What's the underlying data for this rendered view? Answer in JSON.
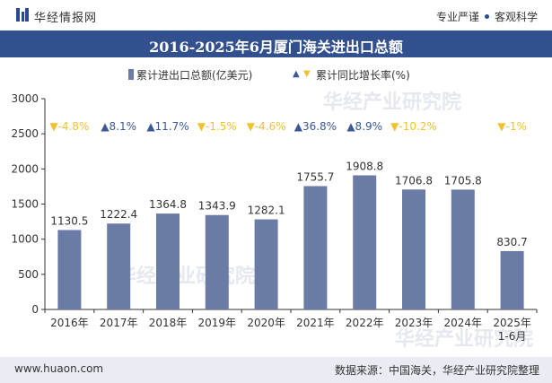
{
  "header": {
    "site_name": "华经情报网",
    "tagline_left": "专业严谨",
    "tagline_right": "客观科学"
  },
  "colors": {
    "bar": "#6a7ba6",
    "title_bg": "#324f8e",
    "up": "#3b5998",
    "down": "#f2c12e"
  },
  "legend": {
    "series1": "累计进出口总额(亿美元)",
    "series2": "累计同比增长率(%)"
  },
  "footer": {
    "url": "www.huaon.com",
    "source": "数据来源：中国海关，华经产业研究院整理"
  },
  "watermark": "华经产业研究院",
  "chart_data": {
    "type": "bar",
    "title": "2016-2025年6月厦门海关进出口总额",
    "categories": [
      "2016年",
      "2017年",
      "2018年",
      "2019年",
      "2020年",
      "2021年",
      "2022年",
      "2023年",
      "2024年",
      "2025年 1-6月"
    ],
    "ylim": [
      0,
      3000
    ],
    "yticks": [
      0,
      500,
      1000,
      1500,
      2000,
      2500,
      3000
    ],
    "series": [
      {
        "name": "累计进出口总额(亿美元)",
        "values": [
          1130.5,
          1222.4,
          1364.8,
          1343.9,
          1282.1,
          1755.7,
          1908.8,
          1706.8,
          1705.8,
          830.7
        ],
        "labels": [
          "1130.5",
          "1222.4",
          "1364.8",
          "1343.9",
          "1282.1",
          "1755.7",
          "1908.8",
          "1706.8",
          "1705.8",
          "830.7"
        ]
      },
      {
        "name": "累计同比增长率(%)",
        "values": [
          -4.8,
          8.1,
          11.7,
          -1.5,
          -4.6,
          36.8,
          8.9,
          -10.2,
          null,
          -1
        ],
        "labels": [
          "-4.8%",
          "8.1%",
          "11.7%",
          "-1.5%",
          "-4.6%",
          "36.8%",
          "8.9%",
          "-10.2%",
          "",
          "-1%"
        ]
      }
    ],
    "grid": false,
    "legend_position": "top"
  }
}
